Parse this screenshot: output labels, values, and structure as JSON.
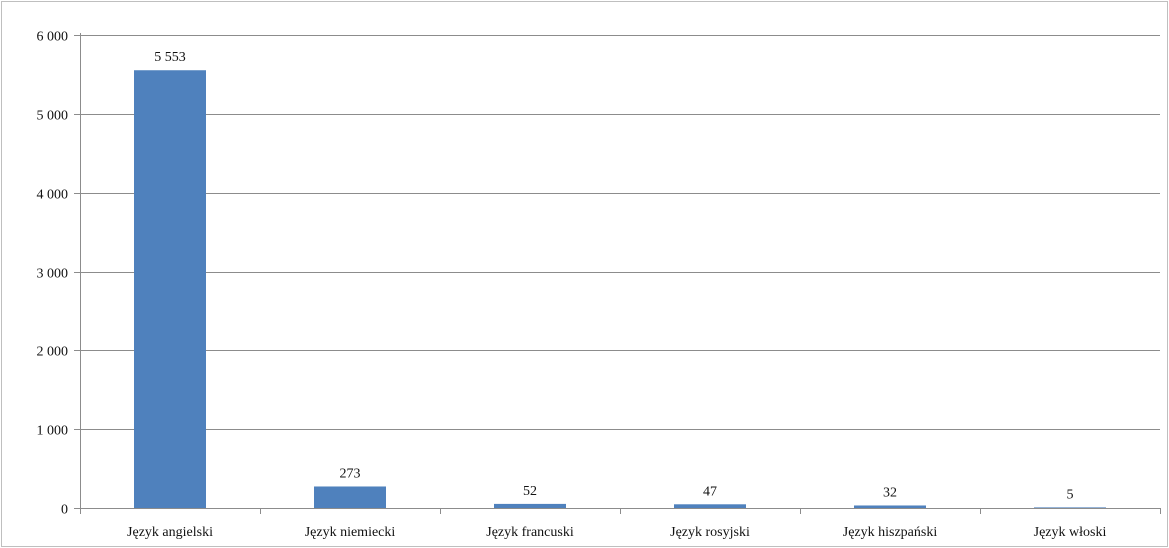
{
  "chart_data": {
    "type": "bar",
    "title": "",
    "xlabel": "",
    "ylabel": "",
    "categories": [
      "Język angielski",
      "Język niemiecki",
      "Język francuski",
      "Język rosyjski",
      "Język hiszpański",
      "Język włoski"
    ],
    "values": [
      5553,
      273,
      52,
      47,
      32,
      5
    ],
    "data_labels": [
      "5 553",
      "273",
      "52",
      "47",
      "32",
      "5"
    ],
    "ylim": [
      0,
      6000
    ],
    "y_ticks": [
      0,
      1000,
      2000,
      3000,
      4000,
      5000,
      6000
    ],
    "y_tick_labels": [
      "0",
      "1 000",
      "2 000",
      "3 000",
      "4 000",
      "5 000",
      "6 000"
    ],
    "grid": true,
    "legend": "none",
    "bar_color": "#4F81BD",
    "grid_color": "#8C8C8C",
    "axis_color": "#8C8C8C",
    "text_color": "#111111",
    "frame_color": "#BFBFBF"
  }
}
